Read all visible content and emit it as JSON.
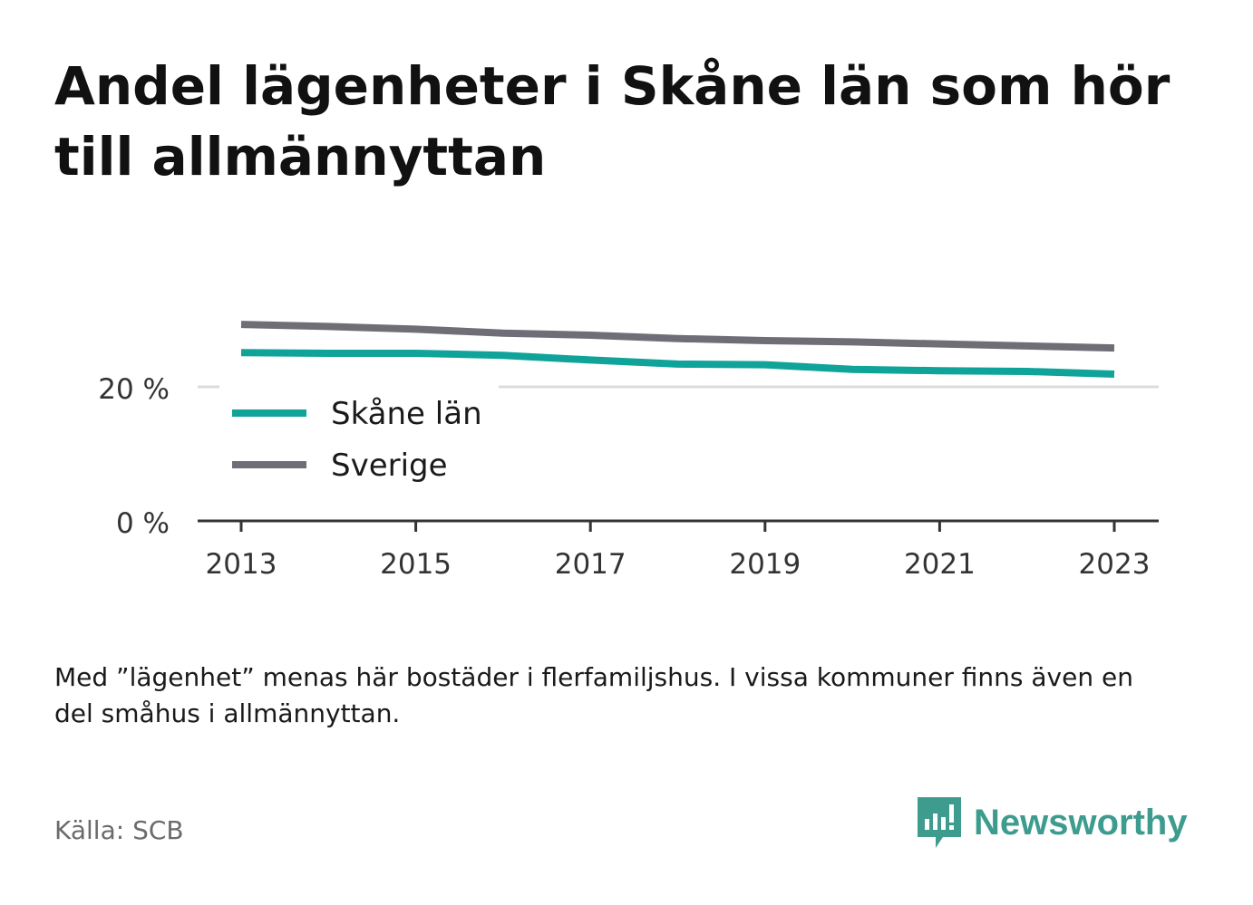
{
  "title": "Andel lägenheter i Skåne län som hör till allmännyttan",
  "note": "Med ”lägenhet” menas här bostäder i flerfamiljshus. I vissa kommuner finns även en del småhus i allmännyttan.",
  "source": "Källa: SCB",
  "brand": {
    "name": "Newsworthy",
    "icon": "newsworthy-logo-icon",
    "color": "#3e9c8f"
  },
  "chart_data": {
    "type": "line",
    "x": [
      2013,
      2014,
      2015,
      2016,
      2017,
      2018,
      2019,
      2020,
      2021,
      2022,
      2023
    ],
    "xticks": [
      "2013",
      "2015",
      "2017",
      "2019",
      "2021",
      "2023"
    ],
    "yticks": [
      "0 %",
      "20 %"
    ],
    "ylim": [
      0,
      40
    ],
    "grid": true,
    "legend_position": "left",
    "series": [
      {
        "name": "Skåne län",
        "color": "#0fa39a",
        "values": [
          25.1,
          25.0,
          25.0,
          24.7,
          24.0,
          23.4,
          23.3,
          22.6,
          22.4,
          22.3,
          21.9
        ]
      },
      {
        "name": "Sverige",
        "color": "#6f6e76",
        "values": [
          29.3,
          29.0,
          28.6,
          28.0,
          27.7,
          27.2,
          26.9,
          26.7,
          26.4,
          26.1,
          25.8
        ]
      }
    ]
  }
}
